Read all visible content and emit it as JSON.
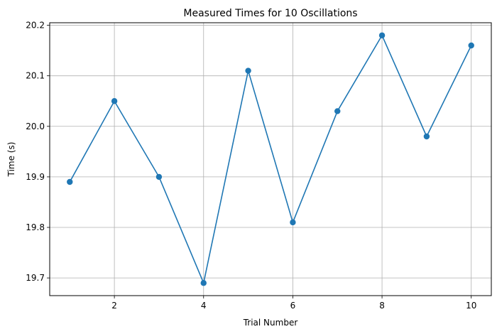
{
  "chart_data": {
    "type": "line",
    "title": "Measured Times for 10 Oscillations",
    "xlabel": "Trial Number",
    "ylabel": "Time (s)",
    "x": [
      1,
      2,
      3,
      4,
      5,
      6,
      7,
      8,
      9,
      10
    ],
    "series": [
      {
        "values": [
          19.89,
          20.05,
          19.9,
          19.69,
          20.11,
          19.81,
          20.03,
          20.18,
          19.98,
          20.16
        ],
        "color": "#1f77b4",
        "marker": "circle"
      }
    ],
    "xlim": [
      0.55,
      10.45
    ],
    "ylim": [
      19.665,
      20.205
    ],
    "xticks": [
      2,
      4,
      6,
      8,
      10
    ],
    "xtick_labels": [
      "2",
      "4",
      "6",
      "8",
      "10"
    ],
    "yticks": [
      19.7,
      19.8,
      19.9,
      20.0,
      20.1,
      20.2
    ],
    "ytick_labels": [
      "19.7",
      "19.8",
      "19.9",
      "20.0",
      "20.1",
      "20.2"
    ],
    "grid": true,
    "legend": false
  }
}
